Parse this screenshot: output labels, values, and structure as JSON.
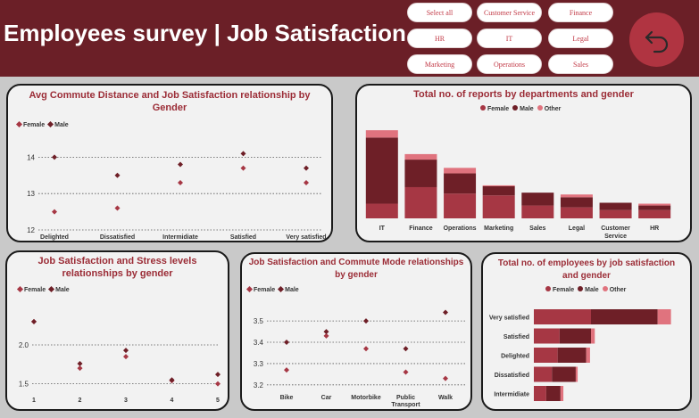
{
  "header": {
    "title": "Employees survey | Job Satisfaction",
    "slicers": [
      "Select all",
      "Customer Service",
      "Finance",
      "HR",
      "IT",
      "Legal",
      "Marketing",
      "Operations",
      "Sales"
    ],
    "back_icon": "back-arrow-icon"
  },
  "colors": {
    "female": "#a63744",
    "male": "#6e1f27",
    "other": "#e0737e",
    "accent": "#9b2c36"
  },
  "legend": {
    "female": "Female",
    "male": "Male",
    "other": "Other"
  },
  "chart_data": [
    {
      "id": "commute_distance",
      "type": "scatter",
      "title": "Avg Commute Distance and Job Satisfaction relationship by Gender",
      "categories": [
        "Delighted",
        "Dissatisfied",
        "Intermidiate",
        "Satisfied",
        "Very satisfied"
      ],
      "series": [
        {
          "name": "Female",
          "values": [
            12.5,
            12.6,
            13.3,
            13.7,
            13.3
          ]
        },
        {
          "name": "Male",
          "values": [
            14.0,
            13.5,
            13.8,
            14.1,
            13.7
          ]
        }
      ],
      "yticks": [
        12,
        13,
        14
      ],
      "ylim": [
        12,
        14.5
      ]
    },
    {
      "id": "dept_gender",
      "type": "bar",
      "stacked": true,
      "title": "Total no. of reports by departments and gender",
      "categories": [
        "IT",
        "Finance",
        "Operations",
        "Marketing",
        "Sales",
        "Legal",
        "Customer Service",
        "HR"
      ],
      "series": [
        {
          "name": "Female",
          "values": [
            16,
            34,
            27,
            25,
            14,
            12,
            9,
            9
          ]
        },
        {
          "name": "Male",
          "values": [
            72,
            30,
            22,
            10,
            14,
            11,
            8,
            5
          ]
        },
        {
          "name": "Other",
          "values": [
            8,
            6,
            6,
            1,
            0,
            3,
            0,
            2
          ]
        }
      ],
      "ylim": [
        0,
        100
      ]
    },
    {
      "id": "stress",
      "type": "scatter",
      "title": "Job Satisfaction and Stress levels relationships by gender",
      "categories": [
        "1",
        "2",
        "3",
        "4",
        "5"
      ],
      "series": [
        {
          "name": "Female",
          "values": [
            2.3,
            1.7,
            1.85,
            1.54,
            1.5
          ]
        },
        {
          "name": "Male",
          "values": [
            2.3,
            1.76,
            1.93,
            1.55,
            1.62
          ]
        }
      ],
      "yticks": [
        1.5,
        2.0
      ],
      "ylim": [
        1.45,
        2.55
      ]
    },
    {
      "id": "commute_mode",
      "type": "scatter",
      "title": "Job Satisfaction and Commute Mode relationships by gender",
      "categories": [
        "Bike",
        "Car",
        "Motorbike",
        "Public Transport",
        "Walk"
      ],
      "series": [
        {
          "name": "Female",
          "values": [
            3.27,
            3.43,
            3.37,
            3.26,
            3.23
          ]
        },
        {
          "name": "Male",
          "values": [
            3.4,
            3.45,
            3.5,
            3.37,
            3.54
          ]
        }
      ],
      "yticks": [
        3.2,
        3.3,
        3.4,
        3.5
      ],
      "ylim": [
        3.17,
        3.58
      ]
    },
    {
      "id": "emp_satisfaction",
      "type": "bar",
      "orientation": "horizontal",
      "stacked": true,
      "title": "Total no. of employees by job satisfaction and gender",
      "categories": [
        "Very satisfied",
        "Satisfied",
        "Delighted",
        "Dissatisfied",
        "Intermidiate"
      ],
      "series": [
        {
          "name": "Female",
          "values": [
            60,
            27,
            25,
            19,
            13
          ]
        },
        {
          "name": "Male",
          "values": [
            70,
            33,
            30,
            25,
            15
          ]
        },
        {
          "name": "Other",
          "values": [
            14,
            4,
            4,
            2,
            3
          ]
        }
      ],
      "xlim": [
        0,
        150
      ]
    }
  ]
}
